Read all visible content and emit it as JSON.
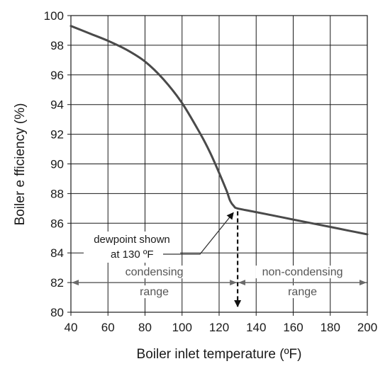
{
  "chart_data": {
    "type": "line",
    "title": "",
    "xlabel": "Boiler inlet temperature (ºF)",
    "ylabel": "Boiler e fficiency (%)",
    "xlim": [
      40,
      200
    ],
    "ylim": [
      80,
      100
    ],
    "x_ticks": [
      40,
      60,
      80,
      100,
      120,
      140,
      160,
      180,
      200
    ],
    "y_ticks": [
      80,
      82,
      84,
      86,
      88,
      90,
      92,
      94,
      96,
      98,
      100
    ],
    "grid": true,
    "series": [
      {
        "x": [
          40,
          50,
          60,
          70,
          80,
          90,
          100,
          110,
          115,
          120,
          124,
          126,
          128,
          130,
          140,
          150,
          160,
          170,
          180,
          190,
          200
        ],
        "y": [
          99.3,
          98.8,
          98.3,
          97.7,
          96.9,
          95.7,
          94.1,
          92.0,
          90.8,
          89.4,
          88.2,
          87.5,
          87.15,
          87.0,
          86.75,
          86.5,
          86.25,
          86.0,
          85.75,
          85.5,
          85.25
        ]
      }
    ],
    "annotations": {
      "dewpoint_line1": "dewpoint shown",
      "dewpoint_line2": "at 130 ºF",
      "dewpoint_x": 130,
      "dewpoint_y": 87.0,
      "condensing_line1": "condensing",
      "condensing_line2": "range",
      "noncondensing_line1": "non-condensing",
      "noncondensing_line2": "range",
      "range_arrow_y": 82
    },
    "colors": {
      "curve": "#4a4a4a",
      "grid": "#1a1a1a",
      "range_arrow": "#6a6a6a"
    }
  }
}
